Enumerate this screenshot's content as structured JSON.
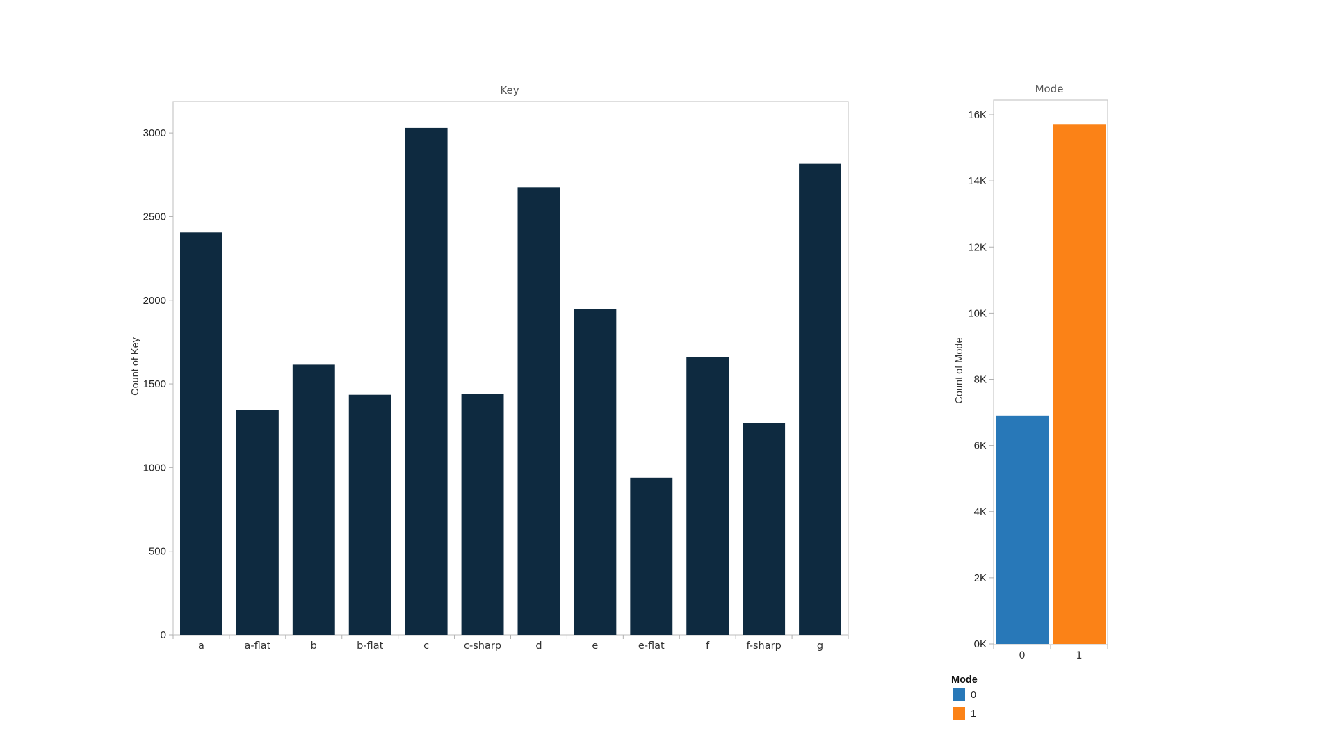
{
  "chart_data": [
    {
      "type": "bar",
      "title": "Key",
      "xlabel": "",
      "ylabel": "Count of Key",
      "categories": [
        "a",
        "a-flat",
        "b",
        "b-flat",
        "c",
        "c-sharp",
        "d",
        "e",
        "e-flat",
        "f",
        "f-sharp",
        "g"
      ],
      "values": [
        2405,
        1345,
        1615,
        1435,
        3030,
        1440,
        2675,
        1945,
        940,
        1660,
        1265,
        2815
      ],
      "ylim": [
        0,
        3200
      ],
      "yticks": [
        0,
        500,
        1000,
        1500,
        2000,
        2500,
        3000
      ],
      "ytick_labels": [
        "0",
        "500",
        "1000",
        "1500",
        "2000",
        "2500",
        "3000"
      ],
      "color": "#0e2a40",
      "grid": false
    },
    {
      "type": "bar",
      "title": "Mode",
      "xlabel": "",
      "ylabel": "Count of Mode",
      "categories": [
        "0",
        "1"
      ],
      "values": [
        6900,
        15700
      ],
      "ylim": [
        0,
        16000
      ],
      "yticks": [
        0,
        2000,
        4000,
        6000,
        8000,
        10000,
        12000,
        14000,
        16000
      ],
      "ytick_labels": [
        "0K",
        "2K",
        "4K",
        "6K",
        "8K",
        "10K",
        "12K",
        "14K",
        "16K"
      ],
      "colors": [
        "#2878b8",
        "#fb8217"
      ],
      "grid": false,
      "legend": {
        "title": "Mode",
        "placement": "bottom-left",
        "entries": [
          {
            "label": "0",
            "color": "#2878b8"
          },
          {
            "label": "1",
            "color": "#fb8217"
          }
        ]
      }
    }
  ]
}
